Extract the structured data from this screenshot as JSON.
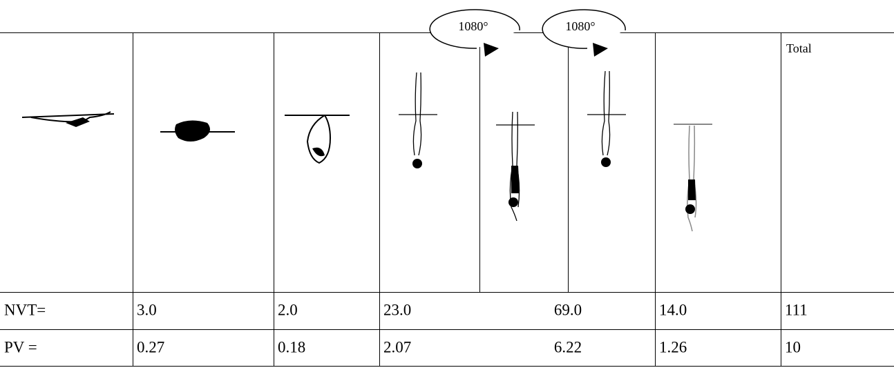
{
  "header": {
    "total": "Total"
  },
  "annotations": [
    "1080°",
    "1080°"
  ],
  "table": {
    "rows": [
      [
        "NVT=",
        "3.0",
        "2.0",
        "23.0",
        "69.0",
        "14.0",
        "111"
      ],
      [
        "PV =",
        "0.27",
        "0.18",
        "2.07",
        "6.22",
        "1.26",
        "10"
      ]
    ]
  }
}
